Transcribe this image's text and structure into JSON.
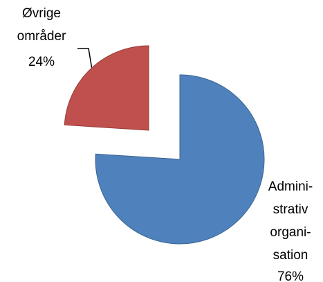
{
  "chart_data": {
    "type": "pie",
    "categories": [
      "Admini-\nstrativ\norgani-\nsation",
      "Øvrige\nområder"
    ],
    "values": [
      76,
      24
    ],
    "value_labels": [
      "76%",
      "24%"
    ],
    "colors": [
      "#4f81bd",
      "#c0504d"
    ]
  }
}
